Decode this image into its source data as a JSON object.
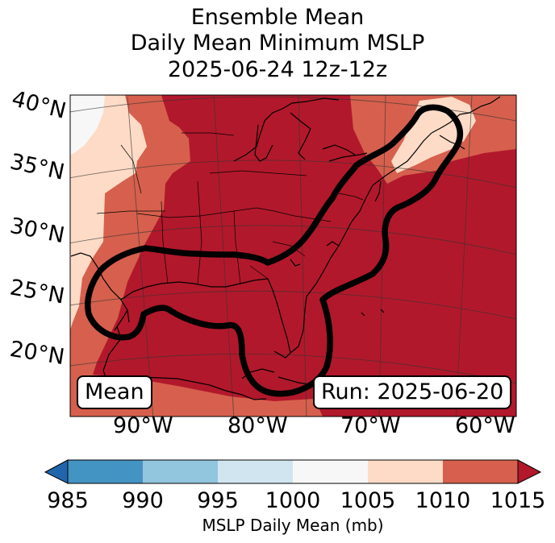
{
  "title_lines": [
    "Ensemble Mean",
    "Daily Mean Minimum MSLP",
    "2025-06-24 12z-12z"
  ],
  "map": {
    "lat_labels": [
      "40°N",
      "35°N",
      "30°N",
      "25°N",
      "20°N"
    ],
    "lon_labels": [
      "90°W",
      "80°W",
      "70°W",
      "60°W"
    ],
    "badge_left": "Mean",
    "badge_right": "Run: 2025-06-20"
  },
  "colorbar": {
    "ticks": [
      "985",
      "990",
      "995",
      "1000",
      "1005",
      "1010",
      "1015"
    ],
    "label": "MSLP Daily Mean (mb)",
    "bins": [
      {
        "range": "<985",
        "color": "#2166ac"
      },
      {
        "range": "985-990",
        "color": "#4393c3"
      },
      {
        "range": "990-995",
        "color": "#92c5de"
      },
      {
        "range": "995-1000",
        "color": "#d1e5f0"
      },
      {
        "range": "1000-1005",
        "color": "#f7f7f7"
      },
      {
        "range": "1005-1010",
        "color": "#fddbc7"
      },
      {
        "range": "1010-1015",
        "color": "#d6604d"
      },
      {
        "range": ">1015",
        "color": "#b2182b"
      }
    ]
  }
}
